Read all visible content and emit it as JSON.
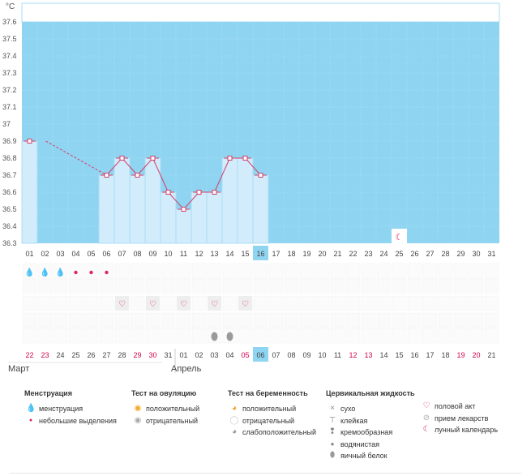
{
  "chart_data": {
    "type": "bar",
    "title": "",
    "ylabel": "°C",
    "xlabel": "",
    "ylim": [
      36.3,
      37.6
    ],
    "y_ticks": [
      "37.6",
      "37.5",
      "37.4",
      "37.3",
      "37.2",
      "37.1",
      "37",
      "36.9",
      "36.8",
      "36.7",
      "36.6",
      "36.5",
      "36.4",
      "36.3"
    ],
    "cycle_days": [
      "01",
      "02",
      "03",
      "04",
      "05",
      "06",
      "07",
      "08",
      "09",
      "10",
      "11",
      "12",
      "13",
      "14",
      "15",
      "16",
      "17",
      "18",
      "19",
      "20",
      "21",
      "22",
      "23",
      "24",
      "25",
      "26",
      "27",
      "28",
      "29",
      "30",
      "31"
    ],
    "current_day_index": 15,
    "temperatures": [
      36.9,
      null,
      null,
      null,
      null,
      36.7,
      36.8,
      36.7,
      36.8,
      36.6,
      36.5,
      36.6,
      36.6,
      36.8,
      36.8,
      36.7,
      null,
      null,
      null,
      null,
      null,
      null,
      null,
      null,
      null,
      null,
      null,
      null,
      null,
      null,
      null
    ],
    "dashed_segment": [
      0,
      5
    ],
    "menstruation": [
      "heavy",
      "heavy",
      "heavy",
      "light",
      "light",
      "light",
      null,
      null,
      null,
      null,
      null,
      null,
      null,
      null,
      null,
      null,
      null,
      null,
      null,
      null,
      null,
      null,
      null,
      null,
      null,
      null,
      null,
      null,
      null,
      null,
      null
    ],
    "intercourse_days": [
      7,
      9,
      11,
      13,
      15
    ],
    "cervical_fluid_days": [
      13,
      14
    ],
    "lunar_day": 25,
    "calendar_dates": [
      "22",
      "23",
      "24",
      "25",
      "26",
      "27",
      "28",
      "29",
      "30",
      "31",
      "01",
      "02",
      "03",
      "04",
      "05",
      "06",
      "07",
      "08",
      "09",
      "10",
      "11",
      "12",
      "13",
      "14",
      "15",
      "16",
      "17",
      "18",
      "19",
      "20",
      "21"
    ],
    "red_date_indices": [
      0,
      1,
      7,
      8,
      14,
      21,
      22,
      28,
      29
    ],
    "month_labels": [
      {
        "label": "Март",
        "start_index": 0
      },
      {
        "label": "Апрель",
        "start_index": 10
      }
    ]
  },
  "legend": {
    "menstruation": {
      "title": "Менструация",
      "items": [
        "менструация",
        "небольшие выделения"
      ]
    },
    "ovulation": {
      "title": "Тест на овуляцию",
      "items": [
        "положительный",
        "отрицательный"
      ]
    },
    "pregnancy": {
      "title": "Тест на беременность",
      "items": [
        "положительный",
        "отрицательный",
        "слабоположительный"
      ]
    },
    "cervical": {
      "title": "Цервикальная жидкость",
      "items": [
        "сухо",
        "клейкая",
        "кремообразная",
        "водянистая",
        "яичный белок"
      ]
    },
    "other": {
      "items": [
        "половой акт",
        "прием лекарств",
        "лунный календарь"
      ]
    }
  },
  "colors": {
    "plot_bg": "#8fd5f2",
    "bar_fill": "#d2ecfb",
    "bar_stroke": "#a9dcf5",
    "line": "#d43f6a",
    "current_day": "#8fd5f2",
    "red_text": "#d6004f",
    "grid": "#bde4f6"
  }
}
